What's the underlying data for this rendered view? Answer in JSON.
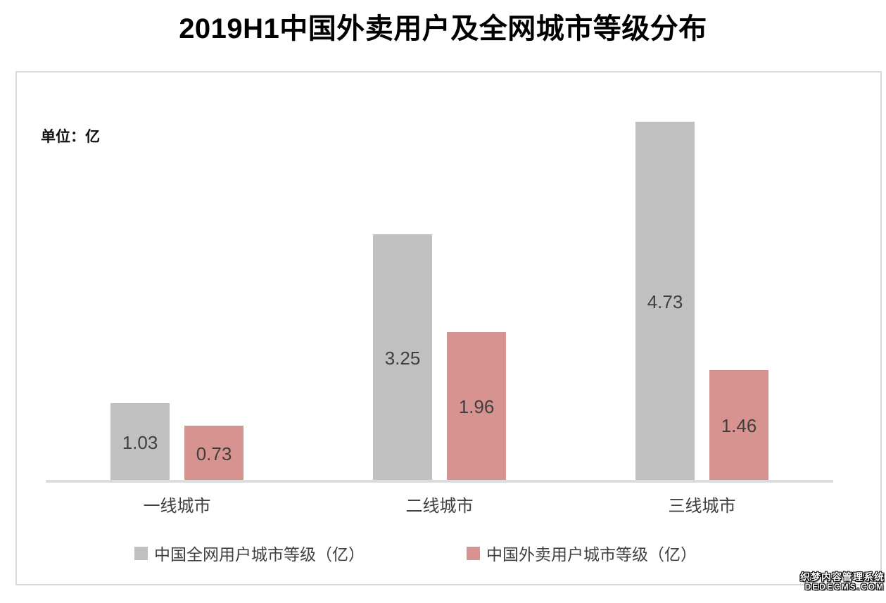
{
  "title": "2019H1中国外卖用户及全网城市等级分布",
  "unit_label": "单位：亿",
  "chart_data": {
    "type": "bar",
    "title": "2019H1中国外卖用户及全网城市等级分布",
    "unit": "亿",
    "categories": [
      "一线城市",
      "二线城市",
      "三线城市"
    ],
    "series": [
      {
        "name": "中国全网用户城市等级（亿）",
        "color": "#c0c0c0",
        "values": [
          1.03,
          3.25,
          4.73
        ]
      },
      {
        "name": "中国外卖用户城市等级（亿）",
        "color": "#d7938f",
        "values": [
          0.73,
          1.96,
          1.46
        ]
      }
    ],
    "ylim": [
      0,
      5.4
    ],
    "grid": false,
    "y_axis_visible": false,
    "legend_position": "bottom",
    "data_labels": "inside-center"
  },
  "watermark": {
    "line1": "织梦内容管理系统",
    "line2": "DEDECMS.COM"
  }
}
